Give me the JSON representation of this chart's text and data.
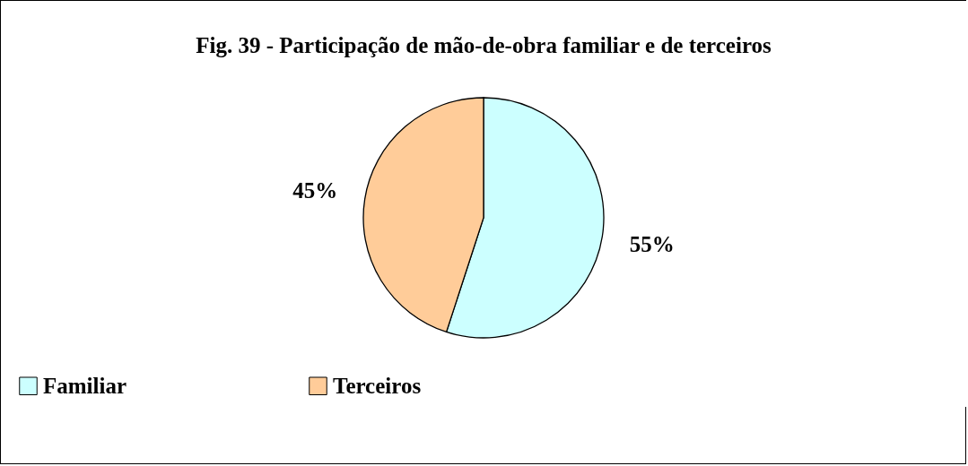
{
  "chart_data": {
    "type": "pie",
    "title": "Fig. 39 - Participação de mão-de-obra familiar e de terceiros",
    "categories": [
      "Familiar",
      "Terceiros"
    ],
    "values": [
      55,
      45
    ],
    "colors": [
      "#ccffff",
      "#ffcc99"
    ],
    "value_labels": [
      "55%",
      "45%"
    ],
    "legend": "bottom"
  }
}
